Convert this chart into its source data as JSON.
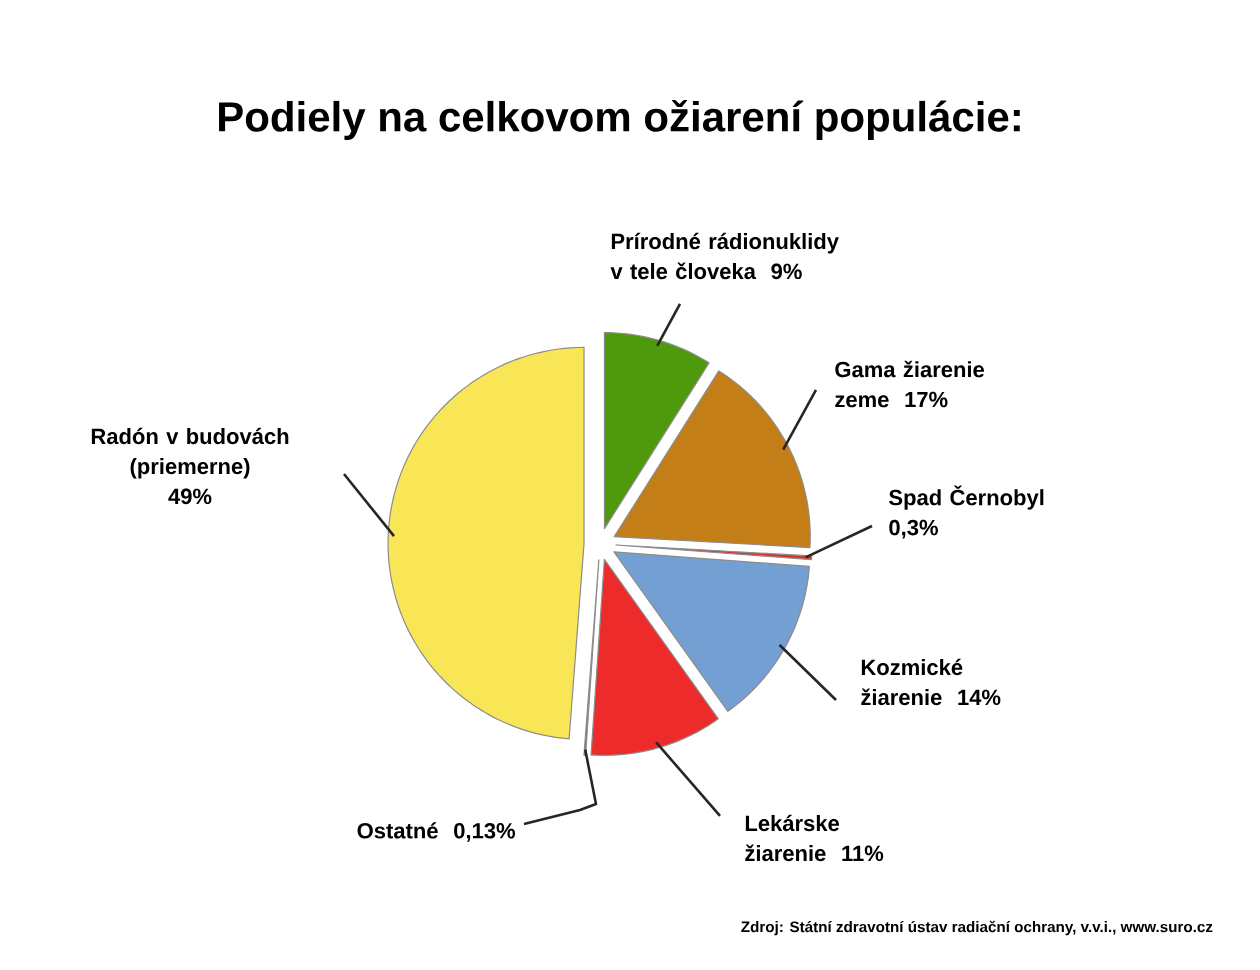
{
  "chart_data": {
    "type": "pie",
    "title": "Podiely na celkovom ožiarení populácie:",
    "categories": [
      "Prírodné rádionuklidy v tele človeka",
      "Gama žiarenie zeme",
      "Spad Černobyl",
      "Kozmické žiarenie",
      "Lekárske žiarenie",
      "Ostatné",
      "Radón v budovách (priemerne)"
    ],
    "values": [
      9,
      17,
      0.3,
      14,
      11,
      0.13,
      49
    ],
    "value_labels": [
      "9%",
      "17%",
      "0,3%",
      "14%",
      "11%",
      "0,13%",
      "49%"
    ],
    "colors": [
      "#4e9a0c",
      "#c47e17",
      "#d8332a",
      "#739fd3",
      "#ee2b2b",
      "#606060",
      "#f9e656"
    ],
    "annotations": [
      "Zdroj: Státní zdravotní ústav radiační ochrany, v.v.i., www.suro.cz"
    ]
  }
}
